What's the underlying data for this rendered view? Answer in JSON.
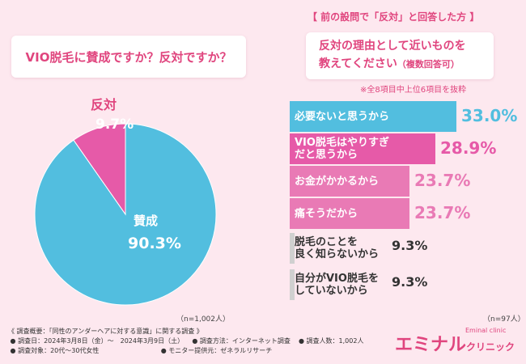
{
  "left": {
    "question": "VIO脱毛に賛成ですか？反対ですか？",
    "sample": "（n=1,002人）"
  },
  "right": {
    "header": "【 前の設問で「反対」と回答した方 】",
    "question_line1": "反対の理由として近いものを",
    "question_line2": "教えてください",
    "question_sub": "（複数回答可）",
    "note": "※全8項目中上位6項目を抜粋",
    "sample": "（n=97人）"
  },
  "pie_texts": {
    "oppose_label": "反対",
    "oppose_value": "9.7%",
    "agree_label": "賛成",
    "agree_value": "90.3%"
  },
  "bar_texts": [
    {
      "label": "必要ないと思うから",
      "value": "33.0%"
    },
    {
      "label": "VIO脱毛はやりすぎ",
      "label2": "だと思うから",
      "value": "28.9%"
    },
    {
      "label": "お金がかかるから",
      "value": "23.7%"
    },
    {
      "label": "痛そうだから",
      "value": "23.7%"
    },
    {
      "label": "脱毛のことを",
      "label2": "良く知らないから",
      "value": "9.3%"
    },
    {
      "label": "自分がVIO脱毛を",
      "label2": "していないから",
      "value": "9.3%"
    }
  ],
  "chart_data": [
    {
      "type": "pie",
      "title": "VIO脱毛に賛成ですか？反対ですか？",
      "categories": [
        "賛成",
        "反対"
      ],
      "values": [
        90.3,
        9.7
      ],
      "colors": [
        "#52bedf",
        "#e65aa8"
      ]
    },
    {
      "type": "bar",
      "orientation": "horizontal",
      "title": "反対の理由として近いものを教えてください（複数回答可）",
      "categories": [
        "必要ないと思うから",
        "VIO脱毛はやりすぎだと思うから",
        "お金がかかるから",
        "痛そうだから",
        "脱毛のことを良く知らないから",
        "自分がVIO脱毛をしていないから"
      ],
      "values": [
        33.0,
        28.9,
        23.7,
        23.7,
        9.3,
        9.3
      ],
      "colors": [
        "#52bedf",
        "#e65aa8",
        "#e97ab5",
        "#e97ab5",
        "#d0d0d0",
        "#d0d0d0"
      ],
      "value_colors": [
        "#52bedf",
        "#e65aa8",
        "#e97ab5",
        "#e97ab5",
        "#333333",
        "#333333"
      ]
    }
  ],
  "footer": {
    "line1": "《 調査概要：「同性のアンダーヘアに対する意識」に関する調査 》",
    "line2a": "● 調査日：2024年3月8日（金）～　2024年3月9日（土）",
    "line2b": "● 調査方法：インターネット調査",
    "line2c": "● 調査人数：1,002人",
    "line3a": "● 調査対象：20代～30代女性",
    "line3b": "● モニター提供元：ゼネラルリサーチ"
  },
  "brand": {
    "main": "エミナル",
    "sub": "クリニック",
    "small": "Eminal clinic"
  }
}
